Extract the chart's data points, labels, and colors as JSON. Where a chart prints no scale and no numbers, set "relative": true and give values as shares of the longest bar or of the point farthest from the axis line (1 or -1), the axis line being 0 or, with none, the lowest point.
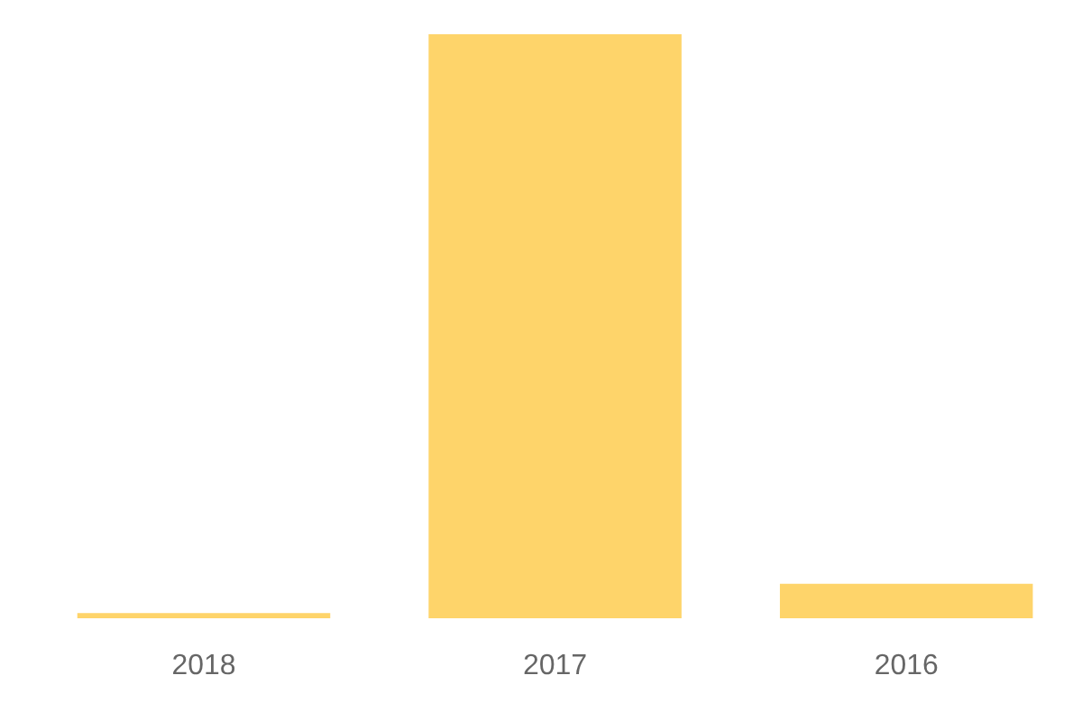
{
  "chart_data": {
    "type": "bar",
    "categories": [
      "2018",
      "2017",
      "2016"
    ],
    "values": [
      0.009,
      1,
      0.059
    ],
    "color": "#fed46a",
    "relative": true,
    "grid": false,
    "legend": false
  }
}
